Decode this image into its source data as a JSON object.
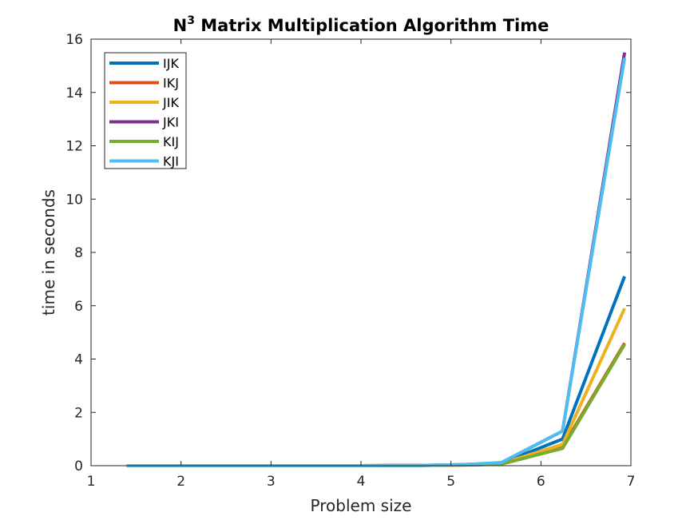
{
  "chart_data": {
    "type": "line",
    "title": "N",
    "title_superscript": "3",
    "title_rest": " Matrix Multiplication Algorithm Time",
    "xlabel": "Problem size",
    "ylabel": "time in seconds",
    "xlim": [
      1,
      7
    ],
    "ylim": [
      0,
      16
    ],
    "xticks": [
      1,
      2,
      3,
      4,
      5,
      6,
      7
    ],
    "yticks": [
      0,
      2,
      4,
      6,
      8,
      10,
      12,
      14,
      16
    ],
    "grid": false,
    "legend_position": "top-left",
    "x": [
      1.398,
      2.0,
      3.0,
      4.0,
      4.6,
      5.0,
      5.25,
      5.56,
      6.24,
      6.93
    ],
    "series": [
      {
        "name": "IJK",
        "color": "#0072BD",
        "values": [
          0,
          0,
          0,
          0,
          0.01,
          0.02,
          0.04,
          0.09,
          1.0,
          7.1
        ]
      },
      {
        "name": "IKJ",
        "color": "#D95319",
        "values": [
          0,
          0,
          0,
          0,
          0.01,
          0.02,
          0.03,
          0.07,
          0.7,
          4.6
        ]
      },
      {
        "name": "JIK",
        "color": "#EDB120",
        "values": [
          0,
          0,
          0,
          0,
          0.01,
          0.02,
          0.04,
          0.08,
          0.8,
          5.9
        ]
      },
      {
        "name": "JKI",
        "color": "#7E2F8E",
        "values": [
          0,
          0,
          0,
          0,
          0.01,
          0.03,
          0.05,
          0.11,
          1.3,
          15.5
        ]
      },
      {
        "name": "KIJ",
        "color": "#77AC30",
        "values": [
          0,
          0,
          0,
          0,
          0.01,
          0.02,
          0.03,
          0.06,
          0.65,
          4.55
        ]
      },
      {
        "name": "KJI",
        "color": "#4DBEEE",
        "values": [
          0,
          0,
          0,
          0,
          0.01,
          0.03,
          0.06,
          0.12,
          1.3,
          15.3
        ]
      }
    ]
  }
}
